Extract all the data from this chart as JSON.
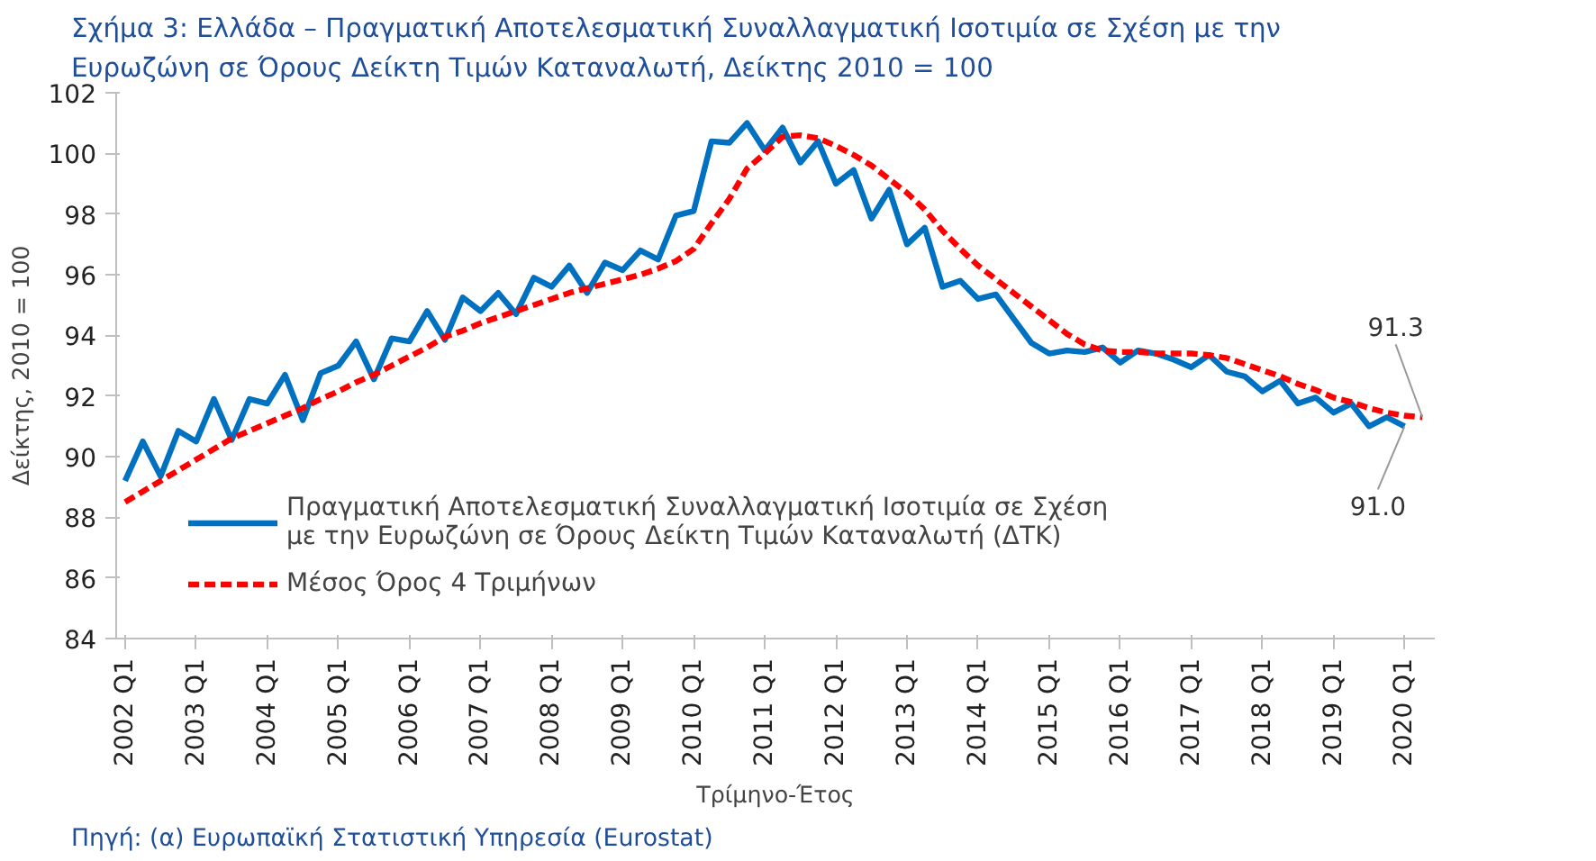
{
  "chart_data": {
    "type": "line",
    "title": "Σχήμα 3: Ελλάδα – Πραγματική Αποτελεσματική Συναλλαγματική Ισοτιμία σε Σχέση με την Ευρωζώνη σε Όρους Δείκτη Τιμών Καταναλωτή, Δείκτης 2010 = 100",
    "xlabel": "Τρίμηνο-Έτος",
    "ylabel": "Δείκτης, 2010 = 100",
    "categories": [
      "2002 Q1",
      null,
      null,
      null,
      "2003 Q1",
      null,
      null,
      null,
      "2004 Q1",
      null,
      null,
      null,
      "2005 Q1",
      null,
      null,
      null,
      "2006 Q1",
      null,
      null,
      null,
      "2007 Q1",
      null,
      null,
      null,
      "2008 Q1",
      null,
      null,
      null,
      "2009 Q1",
      null,
      null,
      null,
      "2010 Q1",
      null,
      null,
      null,
      "2011 Q1",
      null,
      null,
      null,
      "2012 Q1",
      null,
      null,
      null,
      "2013 Q1",
      null,
      null,
      null,
      "2014 Q1",
      null,
      null,
      null,
      "2015 Q1",
      null,
      null,
      null,
      "2016 Q1",
      null,
      null,
      null,
      "2017 Q1",
      null,
      null,
      null,
      "2018 Q1",
      null,
      null,
      null,
      "2019 Q1",
      null,
      null,
      null,
      "2020 Q1",
      null
    ],
    "series": [
      {
        "name": "Πραγματική Αποτελεσματική Συναλλαγματική Ισοτιμία σε Σχέση με την Ευρωζώνη σε Όρους Δείκτη Τιμών Καταναλωτή (ΔΤΚ)",
        "color": "#0070c0",
        "line_style": "solid",
        "values": [
          89.2,
          90.5,
          89.35,
          90.85,
          90.5,
          91.9,
          90.55,
          91.9,
          91.75,
          92.7,
          91.2,
          92.75,
          93.0,
          93.8,
          92.55,
          93.9,
          93.8,
          94.8,
          93.85,
          95.25,
          94.8,
          95.4,
          94.7,
          95.9,
          95.6,
          96.3,
          95.4,
          96.4,
          96.15,
          96.8,
          96.5,
          97.95,
          98.1,
          100.4,
          100.35,
          101.0,
          100.1,
          100.85,
          99.7,
          100.4,
          99.0,
          99.45,
          97.85,
          98.8,
          97.0,
          97.55,
          95.6,
          95.8,
          95.2,
          95.35,
          94.55,
          93.75,
          93.4,
          93.5,
          93.45,
          93.6,
          93.1,
          93.5,
          93.4,
          93.2,
          92.95,
          93.35,
          92.8,
          92.65,
          92.15,
          92.5,
          91.75,
          91.95,
          91.45,
          91.75,
          91.0,
          91.3,
          91.0,
          null
        ],
        "value_labels": [
          null,
          null,
          null,
          null,
          null,
          null,
          null,
          null,
          null,
          null,
          null,
          null,
          null,
          null,
          null,
          null,
          null,
          null,
          null,
          null,
          null,
          null,
          null,
          null,
          null,
          null,
          null,
          null,
          null,
          null,
          null,
          null,
          null,
          null,
          null,
          null,
          null,
          null,
          null,
          null,
          null,
          null,
          null,
          null,
          null,
          null,
          null,
          null,
          null,
          null,
          null,
          null,
          null,
          null,
          null,
          null,
          null,
          null,
          null,
          null,
          null,
          null,
          null,
          null,
          null,
          null,
          null,
          null,
          null,
          null,
          null,
          null,
          "91.0",
          null
        ]
      },
      {
        "name": "Μέσος Όρος 4 Τριμήνων",
        "color": "#ff0000",
        "line_style": "dashed",
        "values": [
          88.5,
          88.85,
          89.2,
          89.55,
          89.9,
          90.25,
          90.6,
          90.85,
          91.1,
          91.35,
          91.6,
          91.9,
          92.15,
          92.45,
          92.7,
          93.0,
          93.3,
          93.6,
          93.95,
          94.15,
          94.4,
          94.6,
          94.8,
          95.0,
          95.2,
          95.4,
          95.55,
          95.7,
          95.85,
          96.0,
          96.2,
          96.45,
          96.85,
          97.7,
          98.5,
          99.5,
          100.0,
          100.55,
          100.6,
          100.5,
          100.25,
          99.95,
          99.6,
          99.15,
          98.7,
          98.15,
          97.45,
          96.85,
          96.3,
          95.85,
          95.4,
          94.95,
          94.5,
          94.05,
          93.7,
          93.5,
          93.45,
          93.45,
          93.4,
          93.4,
          93.4,
          93.35,
          93.25,
          93.05,
          92.85,
          92.65,
          92.4,
          92.2,
          91.95,
          91.8,
          91.6,
          91.45,
          91.35,
          91.3
        ],
        "value_labels": [
          null,
          null,
          null,
          null,
          null,
          null,
          null,
          null,
          null,
          null,
          null,
          null,
          null,
          null,
          null,
          null,
          null,
          null,
          null,
          null,
          null,
          null,
          null,
          null,
          null,
          null,
          null,
          null,
          null,
          null,
          null,
          null,
          null,
          null,
          null,
          null,
          null,
          null,
          null,
          null,
          null,
          null,
          null,
          null,
          null,
          null,
          null,
          null,
          null,
          null,
          null,
          null,
          null,
          null,
          null,
          null,
          null,
          null,
          null,
          null,
          null,
          null,
          null,
          null,
          null,
          null,
          null,
          null,
          null,
          null,
          null,
          null,
          null,
          "91.3"
        ]
      }
    ],
    "ylim": [
      84,
      102
    ],
    "yticks": [
      84,
      86,
      88,
      90,
      92,
      94,
      96,
      98,
      100,
      102
    ],
    "grid": false,
    "legend": "bottom",
    "annotations": [
      "Πηγή: (α) Ευρωπαϊκή Στατιστική Υπηρεσία (Eurostat)"
    ]
  }
}
